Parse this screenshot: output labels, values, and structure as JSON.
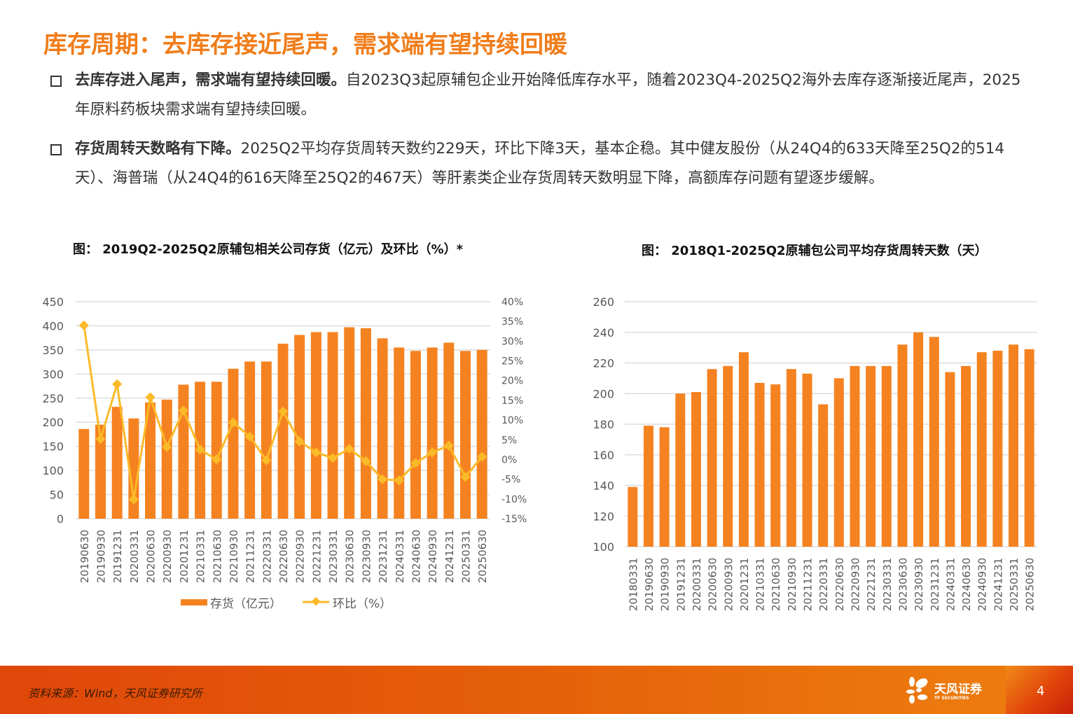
{
  "title": "库存周期：去库存接近尾声，需求端有望持续回暖",
  "bullets": [
    {
      "lead": "去库存进入尾声，需求端有望持续回暖。",
      "text": "自2023Q3起原辅包企业开始降低库存水平，随着2023Q4-2025Q2海外去库存逐渐接近尾声，2025年原料药板块需求端有望持续回暖。"
    },
    {
      "lead": "存货周转天数略有下降。",
      "text": "2025Q2平均存货周转天数约229天，环比下降3天，基本企稳。其中健友股份（从24Q4的633天降至25Q2的514天）、海普瑞（从24Q4的616天降至25Q2的467天）等肝素类企业存货周转天数明显下降，高额库存问题有望逐步缓解。"
    }
  ],
  "footer": {
    "source": "资料来源：Wind，天风证券研究所",
    "logo_cn": "天风证券",
    "logo_en": "TF SECURITIES",
    "page": "4"
  },
  "colors": {
    "accent": "#F07D1A",
    "bar": "#F58220",
    "line": "#FBBA28"
  },
  "chart_data": [
    {
      "type": "bar+line",
      "title": "图： 2019Q2-2025Q2原辅包相关公司存货（亿元）及环比（%）*",
      "categories": [
        "20190630",
        "20190930",
        "20191231",
        "20200331",
        "20200630",
        "20200930",
        "20201231",
        "20210331",
        "20210630",
        "20210930",
        "20211231",
        "20220331",
        "20220630",
        "20220930",
        "20221231",
        "20230331",
        "20230630",
        "20230930",
        "20231231",
        "20240331",
        "20240630",
        "20240930",
        "20241231",
        "20250331",
        "20250630"
      ],
      "series": [
        {
          "name": "存货（亿元）",
          "type": "bar",
          "axis": "left",
          "values": [
            186,
            195,
            232,
            208,
            241,
            247,
            278,
            284,
            284,
            311,
            326,
            326,
            363,
            381,
            387,
            387,
            397,
            395,
            374,
            355,
            348,
            355,
            365,
            348,
            350
          ]
        },
        {
          "name": "环比（%）",
          "type": "line",
          "axis": "right",
          "values": [
            34,
            5.2,
            19.1,
            -10.1,
            15.8,
            3.2,
            12.4,
            2.5,
            0,
            9.4,
            5.8,
            -0.2,
            12.2,
            4.6,
            1.8,
            0.4,
            2.7,
            -0.4,
            -5,
            -5.3,
            -0.9,
            1.8,
            3.5,
            -4.4,
            0.7
          ]
        }
      ],
      "ylim": [
        0,
        450
      ],
      "yticks": [
        "0",
        "50",
        "100",
        "150",
        "200",
        "250",
        "300",
        "350",
        "400",
        "450"
      ],
      "y2lim": [
        -15,
        40
      ],
      "y2ticks": [
        "-15%",
        "-10%",
        "-5%",
        "0%",
        "5%",
        "10%",
        "15%",
        "20%",
        "25%",
        "30%",
        "35%",
        "40%"
      ],
      "grid": true,
      "legend": "bottom"
    },
    {
      "type": "bar",
      "title": "图： 2018Q1-2025Q2原辅包公司平均存货周转天数（天）",
      "categories": [
        "20180331",
        "20190630",
        "20190930",
        "20191231",
        "20200331",
        "20200630",
        "20200930",
        "20201231",
        "20210331",
        "20210630",
        "20210930",
        "20211231",
        "20220331",
        "20220630",
        "20220930",
        "20221231",
        "20230331",
        "20230630",
        "20230930",
        "20231231",
        "20240331",
        "20240630",
        "20240930",
        "20241231",
        "20250331",
        "20250630"
      ],
      "values": [
        139,
        179,
        178,
        200,
        201,
        216,
        218,
        227,
        207,
        206,
        216,
        213,
        193,
        210,
        218,
        218,
        218,
        232,
        240,
        237,
        214,
        218,
        227,
        228,
        232,
        229
      ],
      "ylim": [
        100,
        260
      ],
      "yticks": [
        "100",
        "120",
        "140",
        "160",
        "180",
        "200",
        "220",
        "240",
        "260"
      ],
      "grid": true,
      "legend": "none"
    }
  ]
}
